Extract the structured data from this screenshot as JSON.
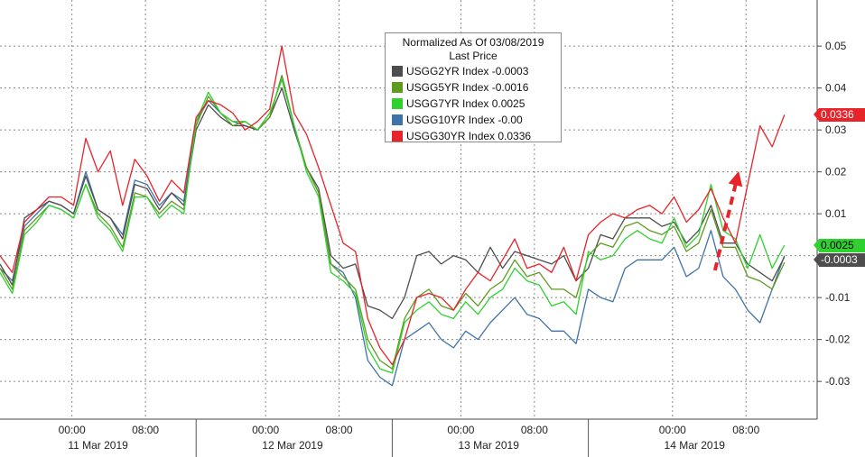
{
  "colors": {
    "usgg2yr": "#4d4d4d",
    "usgg5yr": "#5d9b1e",
    "usgg7yr": "#2fd12f",
    "usgg10yr": "#3f73a8",
    "usgg30yr": "#e8232a",
    "arrow": "#e8232a",
    "grid": "#8a8a8a"
  },
  "legend": {
    "title_line1": "Normalized As Of 03/08/2019",
    "title_line2": "Last Price",
    "entries": [
      {
        "label": "USGG2YR Index  -0.0003",
        "color": "#4d4d4d"
      },
      {
        "label": "USGG5YR Index  -0.0016",
        "color": "#5d9b1e"
      },
      {
        "label": "USGG7YR Index  0.0025",
        "color": "#2fd12f"
      },
      {
        "label": "USGG10YR Index  -0.00",
        "color": "#3f73a8"
      },
      {
        "label": "USGG30YR Index  0.0336",
        "color": "#e8232a"
      }
    ]
  },
  "last_price_labels": [
    {
      "text": "0.0336",
      "value": 0.0336,
      "color": "#e8232a",
      "text_color": "#ffffff"
    },
    {
      "text": "0.0025",
      "value": 0.0025,
      "color": "#2fd12f",
      "text_color": "#000000"
    },
    {
      "text": "-0.0003",
      "value": -0.0003,
      "color": "#4d4d4d",
      "text_color": "#ffffff"
    }
  ],
  "chart_data": {
    "type": "line",
    "title": "",
    "xlabel": "",
    "ylabel": "",
    "ylim": [
      -0.039,
      0.061
    ],
    "y_ticks": [
      -0.03,
      -0.02,
      -0.01,
      0,
      0.01,
      0.02,
      0.03,
      0.04,
      0.05
    ],
    "y_tick_labels": [
      "-0.03",
      "-0.02",
      "-0.01",
      "",
      "0.01",
      "0.02",
      "0.03",
      "0.04",
      "0.05"
    ],
    "y_axis_side": "right",
    "grid": true,
    "legend_position": "top-center",
    "x_range": [
      0,
      100
    ],
    "time_ticks": [
      {
        "x": 8.8,
        "label": "00:00"
      },
      {
        "x": 17.8,
        "label": "08:00"
      },
      {
        "x": 32.5,
        "label": "00:00"
      },
      {
        "x": 41.5,
        "label": "08:00"
      },
      {
        "x": 56.4,
        "label": "00:00"
      },
      {
        "x": 65.4,
        "label": "08:00"
      },
      {
        "x": 82.3,
        "label": "00:00"
      },
      {
        "x": 91.3,
        "label": "08:00"
      }
    ],
    "date_labels": [
      {
        "x": 12.0,
        "label": "11 Mar 2019"
      },
      {
        "x": 35.8,
        "label": "12 Mar 2019"
      },
      {
        "x": 59.8,
        "label": "13 Mar 2019"
      },
      {
        "x": 85.0,
        "label": "14 Mar 2019"
      }
    ],
    "day_separators": [
      24.0,
      48.0,
      72.0
    ],
    "series": [
      {
        "name": "USGG2YR Index",
        "color": "#4d4d4d",
        "x": [
          0,
          1.5,
          3,
          4.5,
          6,
          7.5,
          9,
          10.5,
          12,
          13.5,
          15,
          16.5,
          18,
          19.5,
          21,
          22.5,
          24,
          25.5,
          27,
          28.5,
          30,
          31.5,
          33,
          34.5,
          36,
          37.5,
          39,
          40.5,
          42,
          43.5,
          45,
          46.5,
          48,
          49.5,
          51,
          52.5,
          54,
          55.5,
          57,
          58.5,
          60,
          61.5,
          63,
          64.5,
          66,
          67.5,
          69,
          70.5,
          72,
          73.5,
          75,
          76.5,
          78,
          79.5,
          81,
          82.5,
          84,
          85.5,
          87,
          88.5,
          90,
          91.5,
          93,
          94.5,
          96
        ],
        "y": [
          -0.002,
          -0.007,
          0.009,
          0.011,
          0.013,
          0.012,
          0.01,
          0.019,
          0.011,
          0.009,
          0.004,
          0.017,
          0.016,
          0.011,
          0.015,
          0.012,
          0.03,
          0.036,
          0.033,
          0.031,
          0.031,
          0.03,
          0.033,
          0.04,
          0.03,
          0.021,
          0.016,
          0.0,
          -0.003,
          -0.002,
          -0.012,
          -0.013,
          -0.015,
          -0.01,
          0.0,
          0.001,
          -0.002,
          0.0,
          -0.001,
          -0.004,
          0.002,
          -0.003,
          0.001,
          0.0,
          -0.001,
          -0.002,
          0.0,
          -0.006,
          -0.003,
          0.005,
          0.004,
          0.009,
          0.009,
          0.009,
          0.007,
          0.008,
          0.003,
          0.006,
          0.012,
          0.003,
          0.003,
          -0.002,
          -0.004,
          -0.006,
          -0.0003
        ]
      },
      {
        "name": "USGG5YR Index",
        "color": "#5d9b1e",
        "x": [
          0,
          1.5,
          3,
          4.5,
          6,
          7.5,
          9,
          10.5,
          12,
          13.5,
          15,
          16.5,
          18,
          19.5,
          21,
          22.5,
          24,
          25.5,
          27,
          28.5,
          30,
          31.5,
          33,
          34.5,
          36,
          37.5,
          39,
          40.5,
          42,
          43.5,
          45,
          46.5,
          48,
          49.5,
          51,
          52.5,
          54,
          55.5,
          57,
          58.5,
          60,
          61.5,
          63,
          64.5,
          66,
          67.5,
          69,
          70.5,
          72,
          73.5,
          75,
          76.5,
          78,
          79.5,
          81,
          82.5,
          84,
          85.5,
          87,
          88.5,
          90,
          91.5,
          93,
          94.5,
          96
        ],
        "y": [
          -0.003,
          -0.008,
          0.006,
          0.009,
          0.012,
          0.011,
          0.009,
          0.017,
          0.01,
          0.007,
          0.002,
          0.015,
          0.014,
          0.01,
          0.013,
          0.011,
          0.031,
          0.038,
          0.034,
          0.031,
          0.032,
          0.03,
          0.033,
          0.043,
          0.031,
          0.021,
          0.015,
          -0.002,
          -0.005,
          -0.008,
          -0.02,
          -0.025,
          -0.027,
          -0.015,
          -0.01,
          -0.008,
          -0.012,
          -0.013,
          -0.009,
          -0.012,
          -0.008,
          -0.006,
          -0.001,
          -0.005,
          -0.004,
          -0.008,
          -0.008,
          -0.01,
          0.0,
          0.003,
          0.002,
          0.007,
          0.008,
          0.006,
          0.005,
          0.007,
          0.001,
          0.003,
          0.011,
          0.002,
          0.002,
          -0.005,
          -0.006,
          -0.008,
          -0.0016
        ]
      },
      {
        "name": "USGG7YR Index",
        "color": "#2fd12f",
        "x": [
          0,
          1.5,
          3,
          4.5,
          6,
          7.5,
          9,
          10.5,
          12,
          13.5,
          15,
          16.5,
          18,
          19.5,
          21,
          22.5,
          24,
          25.5,
          27,
          28.5,
          30,
          31.5,
          33,
          34.5,
          36,
          37.5,
          39,
          40.5,
          42,
          43.5,
          45,
          46.5,
          48,
          49.5,
          51,
          52.5,
          54,
          55.5,
          57,
          58.5,
          60,
          61.5,
          63,
          64.5,
          66,
          67.5,
          69,
          70.5,
          72,
          73.5,
          75,
          76.5,
          78,
          79.5,
          81,
          82.5,
          84,
          85.5,
          87,
          88.5,
          90,
          91.5,
          93,
          94.5,
          96
        ],
        "y": [
          -0.004,
          -0.009,
          0.005,
          0.008,
          0.012,
          0.011,
          0.009,
          0.017,
          0.009,
          0.006,
          0.001,
          0.014,
          0.014,
          0.009,
          0.012,
          0.01,
          0.032,
          0.039,
          0.034,
          0.032,
          0.032,
          0.03,
          0.034,
          0.042,
          0.031,
          0.02,
          0.014,
          -0.004,
          -0.006,
          -0.009,
          -0.022,
          -0.027,
          -0.028,
          -0.016,
          -0.013,
          -0.011,
          -0.014,
          -0.015,
          -0.011,
          -0.014,
          -0.01,
          -0.008,
          -0.003,
          -0.006,
          -0.007,
          -0.012,
          -0.011,
          -0.014,
          0.001,
          -0.001,
          0.0,
          0.004,
          0.006,
          0.004,
          0.003,
          0.009,
          0.002,
          0.005,
          0.017,
          0.006,
          0.004,
          -0.003,
          0.005,
          -0.003,
          0.0025
        ]
      },
      {
        "name": "USGG10YR Index",
        "color": "#3f73a8",
        "x": [
          0,
          1.5,
          3,
          4.5,
          6,
          7.5,
          9,
          10.5,
          12,
          13.5,
          15,
          16.5,
          18,
          19.5,
          21,
          22.5,
          24,
          25.5,
          27,
          28.5,
          30,
          31.5,
          33,
          34.5,
          36,
          37.5,
          39,
          40.5,
          42,
          43.5,
          45,
          46.5,
          48,
          49.5,
          51,
          52.5,
          54,
          55.5,
          57,
          58.5,
          60,
          61.5,
          63,
          64.5,
          66,
          67.5,
          69,
          70.5,
          72,
          73.5,
          75,
          76.5,
          78,
          79.5,
          81,
          82.5,
          84,
          85.5,
          87,
          88.5,
          90,
          91.5,
          93,
          94.5,
          96
        ],
        "y": [
          -0.003,
          -0.006,
          0.007,
          0.01,
          0.013,
          0.012,
          0.01,
          0.02,
          0.011,
          0.009,
          0.005,
          0.018,
          0.017,
          0.012,
          0.015,
          0.013,
          0.032,
          0.037,
          0.034,
          0.032,
          0.031,
          0.03,
          0.033,
          0.043,
          0.031,
          0.021,
          0.015,
          -0.002,
          -0.004,
          -0.01,
          -0.025,
          -0.029,
          -0.031,
          -0.02,
          -0.018,
          -0.016,
          -0.02,
          -0.022,
          -0.018,
          -0.02,
          -0.016,
          -0.013,
          -0.01,
          -0.014,
          -0.015,
          -0.018,
          -0.018,
          -0.021,
          -0.008,
          -0.01,
          -0.011,
          -0.003,
          -0.001,
          -0.001,
          -0.001,
          0.002,
          -0.005,
          -0.003,
          0.006,
          -0.005,
          -0.008,
          -0.013,
          -0.016,
          -0.008,
          0.0
        ]
      },
      {
        "name": "USGG30YR Index",
        "color": "#e8232a",
        "x": [
          0,
          1.5,
          3,
          4.5,
          6,
          7.5,
          9,
          10.5,
          12,
          13.5,
          15,
          16.5,
          18,
          19.5,
          21,
          22.5,
          24,
          25.5,
          27,
          28.5,
          30,
          31.5,
          33,
          34.5,
          36,
          37.5,
          39,
          40.5,
          42,
          43.5,
          45,
          46.5,
          48,
          49.5,
          51,
          52.5,
          54,
          55.5,
          57,
          58.5,
          60,
          61.5,
          63,
          64.5,
          66,
          67.5,
          69,
          70.5,
          72,
          73.5,
          75,
          76.5,
          78,
          79.5,
          81,
          82.5,
          84,
          85.5,
          87,
          88.5,
          90,
          91.5,
          93,
          94.5,
          96
        ],
        "y": [
          0.0,
          -0.004,
          0.008,
          0.011,
          0.014,
          0.014,
          0.012,
          0.028,
          0.02,
          0.025,
          0.012,
          0.023,
          0.019,
          0.013,
          0.018,
          0.015,
          0.033,
          0.037,
          0.036,
          0.034,
          0.03,
          0.032,
          0.035,
          0.05,
          0.034,
          0.029,
          0.021,
          0.012,
          0.003,
          0.001,
          -0.015,
          -0.022,
          -0.026,
          -0.02,
          -0.01,
          -0.009,
          -0.01,
          -0.013,
          -0.008,
          -0.004,
          -0.006,
          -0.001,
          0.004,
          -0.003,
          -0.002,
          -0.004,
          0.002,
          -0.006,
          0.005,
          0.008,
          0.01,
          0.009,
          0.011,
          0.012,
          0.01,
          0.014,
          0.008,
          0.011,
          0.016,
          0.009,
          0.003,
          0.017,
          0.031,
          0.026,
          0.0336
        ]
      }
    ]
  }
}
